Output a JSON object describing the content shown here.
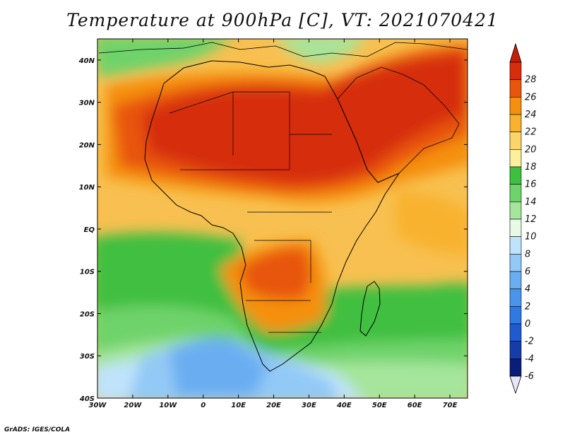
{
  "title": "Temperature at 900hPa [C], VT: 2021070421",
  "footer": "GrADS: IGES/COLA",
  "map": {
    "lon_range": [
      -30,
      75
    ],
    "lat_range": [
      -40,
      45
    ],
    "lon_ticks": [
      {
        "value": -30,
        "label": "30W"
      },
      {
        "value": -20,
        "label": "20W"
      },
      {
        "value": -10,
        "label": "10W"
      },
      {
        "value": 0,
        "label": "0"
      },
      {
        "value": 10,
        "label": "10E"
      },
      {
        "value": 20,
        "label": "20E"
      },
      {
        "value": 30,
        "label": "30E"
      },
      {
        "value": 40,
        "label": "40E"
      },
      {
        "value": 50,
        "label": "50E"
      },
      {
        "value": 60,
        "label": "60E"
      },
      {
        "value": 70,
        "label": "70E"
      }
    ],
    "lat_ticks": [
      {
        "value": 40,
        "label": "40N"
      },
      {
        "value": 30,
        "label": "30N"
      },
      {
        "value": 20,
        "label": "20N"
      },
      {
        "value": 10,
        "label": "10N"
      },
      {
        "value": 0,
        "label": "EQ"
      },
      {
        "value": -10,
        "label": "10S"
      },
      {
        "value": -20,
        "label": "20S"
      },
      {
        "value": -30,
        "label": "30S"
      },
      {
        "value": -40,
        "label": "40S"
      }
    ]
  },
  "colorbar": {
    "labels": [
      "28",
      "26",
      "24",
      "22",
      "20",
      "18",
      "16",
      "14",
      "12",
      "10",
      "8",
      "6",
      "4",
      "2",
      "0",
      "-2",
      "-4",
      "-6"
    ],
    "colors": [
      "#d62d0a",
      "#e8550c",
      "#f5900f",
      "#f8b22e",
      "#fad56a",
      "#fdf09c",
      "#3fbf3f",
      "#6ed36a",
      "#a5e59c",
      "#e6fae6",
      "#bfe3fb",
      "#93c9f6",
      "#6aaef1",
      "#4a95ec",
      "#2e79e2",
      "#1f5ad0",
      "#153ca8",
      "#0a1e78"
    ]
  }
}
